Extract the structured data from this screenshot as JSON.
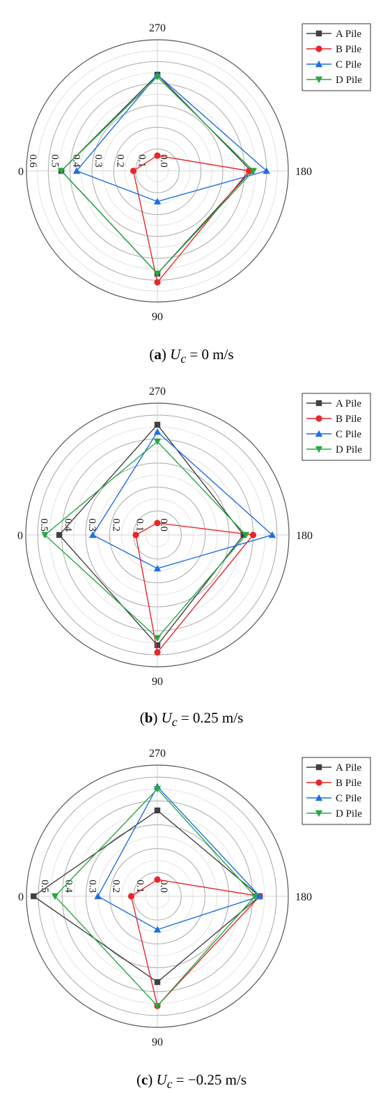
{
  "figure": {
    "panels": [
      {
        "caption": {
          "tag": "a",
          "var": "U",
          "sub": "c",
          "rest": " = 0 m/s"
        },
        "legend_position": "top-right"
      },
      {
        "caption": {
          "tag": "b",
          "var": "U",
          "sub": "c",
          "rest": " = 0.25 m/s"
        },
        "legend_position": "top-right"
      },
      {
        "caption": {
          "tag": "c",
          "var": "U",
          "sub": "c",
          "rest": " = −0.25 m/s"
        },
        "legend_position": "top-right"
      }
    ]
  },
  "chart_data": [
    {
      "type": "radar",
      "angles": [
        "0",
        "90",
        "180",
        "270"
      ],
      "angle_labels": {
        "top": "270",
        "right": "180",
        "bottom": "90",
        "left": "0"
      },
      "rmax": 0.6,
      "radial_ticks": [
        "0.0",
        "0.1",
        "0.2",
        "0.3",
        "0.4",
        "0.5",
        "0.6"
      ],
      "grid": true,
      "legend": "top-right",
      "series": [
        {
          "name": "A Pile",
          "color": "#404040",
          "marker": "square",
          "values": {
            "0": 0.44,
            "90": 0.47,
            "180": 0.43,
            "270": 0.44
          }
        },
        {
          "name": "B Pile",
          "color": "#e8272a",
          "marker": "circle",
          "values": {
            "0": 0.11,
            "90": 0.51,
            "180": 0.42,
            "270": 0.07
          }
        },
        {
          "name": "C Pile",
          "color": "#1f6fe0",
          "marker": "triangle-up",
          "values": {
            "0": 0.37,
            "90": 0.14,
            "180": 0.5,
            "270": 0.44
          }
        },
        {
          "name": "D Pile",
          "color": "#28a745",
          "marker": "triangle-down",
          "values": {
            "0": 0.44,
            "90": 0.47,
            "180": 0.44,
            "270": 0.43
          }
        }
      ]
    },
    {
      "type": "radar",
      "angles": [
        "0",
        "90",
        "180",
        "270"
      ],
      "angle_labels": {
        "top": "270",
        "right": "180",
        "bottom": "90",
        "left": "0"
      },
      "rmax": 0.55,
      "radial_ticks": [
        "0.0",
        "0.1",
        "0.2",
        "0.3",
        "0.4",
        "0.5"
      ],
      "grid": true,
      "legend": "top-right",
      "series": [
        {
          "name": "A Pile",
          "color": "#404040",
          "marker": "square",
          "values": {
            "0": 0.41,
            "90": 0.46,
            "180": 0.36,
            "270": 0.46
          }
        },
        {
          "name": "B Pile",
          "color": "#e8272a",
          "marker": "circle",
          "values": {
            "0": 0.09,
            "90": 0.49,
            "180": 0.4,
            "270": 0.05
          }
        },
        {
          "name": "C Pile",
          "color": "#1f6fe0",
          "marker": "triangle-up",
          "values": {
            "0": 0.27,
            "90": 0.14,
            "180": 0.48,
            "270": 0.43
          }
        },
        {
          "name": "D Pile",
          "color": "#28a745",
          "marker": "triangle-down",
          "values": {
            "0": 0.47,
            "90": 0.43,
            "180": 0.37,
            "270": 0.39
          }
        }
      ]
    },
    {
      "type": "radar",
      "angles": [
        "0",
        "90",
        "180",
        "270"
      ],
      "angle_labels": {
        "top": "270",
        "right": "180",
        "bottom": "90",
        "left": "0"
      },
      "rmax": 0.55,
      "radial_ticks": [
        "0.0",
        "0.1",
        "0.2",
        "0.3",
        "0.4",
        "0.5"
      ],
      "grid": true,
      "legend": "top-right",
      "series": [
        {
          "name": "A Pile",
          "color": "#404040",
          "marker": "square",
          "values": {
            "0": 0.52,
            "90": 0.36,
            "180": 0.43,
            "270": 0.36
          }
        },
        {
          "name": "B Pile",
          "color": "#e8272a",
          "marker": "circle",
          "values": {
            "0": 0.11,
            "90": 0.46,
            "180": 0.43,
            "270": 0.07
          }
        },
        {
          "name": "C Pile",
          "color": "#1f6fe0",
          "marker": "triangle-up",
          "values": {
            "0": 0.25,
            "90": 0.14,
            "180": 0.43,
            "270": 0.46
          }
        },
        {
          "name": "D Pile",
          "color": "#28a745",
          "marker": "triangle-down",
          "values": {
            "0": 0.43,
            "90": 0.46,
            "180": 0.41,
            "270": 0.45
          }
        }
      ]
    }
  ]
}
